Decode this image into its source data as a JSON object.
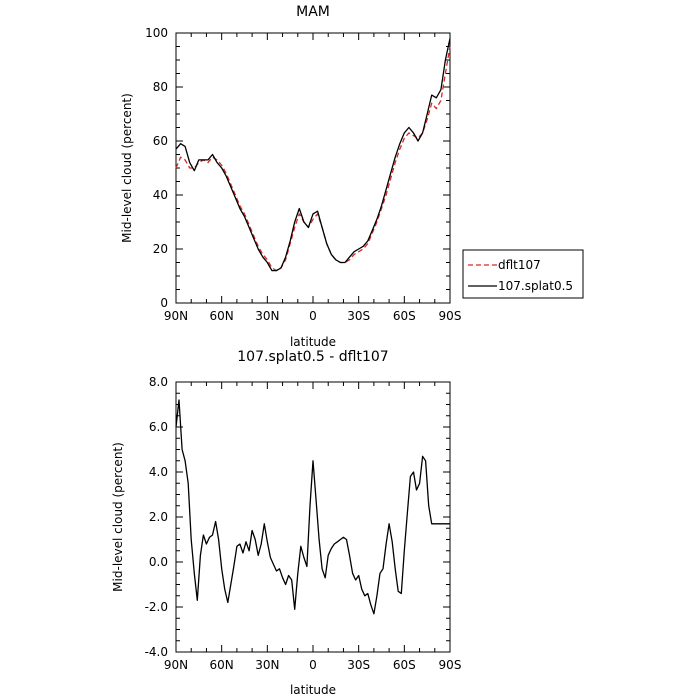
{
  "chart_data": [
    {
      "type": "line",
      "title": "MAM",
      "xlabel": "latitude",
      "ylabel": "Mid-level cloud (percent)",
      "xlim": [
        90,
        -90
      ],
      "ylim": [
        0,
        100
      ],
      "x_ticks": [
        90,
        60,
        30,
        0,
        -30,
        -60,
        -90
      ],
      "x_tick_labels": [
        "90N",
        "60N",
        "30N",
        "0",
        "30S",
        "60S",
        "90S"
      ],
      "y_ticks": [
        0,
        20,
        40,
        60,
        80,
        100
      ],
      "y_tick_labels": [
        "0",
        "20",
        "40",
        "60",
        "80",
        "100"
      ],
      "legend_position": "right",
      "series": [
        {
          "name": "dflt107",
          "color": "#d62728",
          "style": "dashed",
          "x": [
            90,
            87,
            84,
            81,
            78,
            75,
            72,
            69,
            66,
            63,
            60,
            57,
            54,
            51,
            48,
            45,
            42,
            39,
            36,
            33,
            30,
            27,
            24,
            21,
            18,
            15,
            12,
            9,
            6,
            3,
            0,
            -3,
            -6,
            -9,
            -12,
            -15,
            -18,
            -21,
            -24,
            -27,
            -30,
            -33,
            -36,
            -39,
            -42,
            -45,
            -48,
            -51,
            -54,
            -57,
            -60,
            -63,
            -66,
            -69,
            -72,
            -75,
            -78,
            -81,
            -84,
            -87,
            -90
          ],
          "y": [
            50,
            54,
            53,
            50,
            50,
            52,
            53,
            52,
            54,
            53,
            51,
            48,
            44,
            40,
            36,
            33,
            29,
            25,
            21,
            18,
            16,
            13,
            12,
            13,
            16,
            22,
            28,
            33,
            30,
            28,
            31,
            33,
            28,
            22,
            18,
            16,
            15,
            15,
            16,
            18,
            19,
            20,
            22,
            26,
            30,
            35,
            40,
            46,
            52,
            57,
            61,
            63,
            62,
            61,
            63,
            68,
            74,
            72,
            75,
            85,
            95
          ]
        },
        {
          "name": "107.splat0.5",
          "color": "#000000",
          "style": "solid",
          "x": [
            90,
            87,
            84,
            81,
            78,
            75,
            72,
            69,
            66,
            63,
            60,
            57,
            54,
            51,
            48,
            45,
            42,
            39,
            36,
            33,
            30,
            27,
            24,
            21,
            18,
            15,
            12,
            9,
            6,
            3,
            0,
            -3,
            -6,
            -9,
            -12,
            -15,
            -18,
            -21,
            -24,
            -27,
            -30,
            -33,
            -36,
            -39,
            -42,
            -45,
            -48,
            -51,
            -54,
            -57,
            -60,
            -63,
            -66,
            -69,
            -72,
            -75,
            -78,
            -81,
            -84,
            -87,
            -90
          ],
          "y": [
            57,
            59,
            58,
            52,
            49,
            53,
            53,
            53,
            55,
            52,
            50,
            47,
            43,
            39,
            35,
            32,
            28,
            24,
            20,
            17,
            15,
            12,
            12,
            13,
            17,
            23,
            30,
            35,
            30,
            28,
            33,
            34,
            28,
            22,
            18,
            16,
            15,
            15,
            17,
            19,
            20,
            21,
            23,
            27,
            31,
            36,
            42,
            48,
            54,
            59,
            63,
            65,
            63,
            60,
            63,
            70,
            77,
            76,
            79,
            90,
            98
          ]
        }
      ]
    },
    {
      "type": "line",
      "title": "107.splat0.5 - dflt107",
      "xlabel": "latitude",
      "ylabel": "Mid-level cloud (percent)",
      "xlim": [
        90,
        -90
      ],
      "ylim": [
        -4.0,
        8.0
      ],
      "x_ticks": [
        90,
        60,
        30,
        0,
        -30,
        -60,
        -90
      ],
      "x_tick_labels": [
        "90N",
        "60N",
        "30N",
        "0",
        "30S",
        "60S",
        "90S"
      ],
      "y_ticks": [
        -4.0,
        -2.0,
        0.0,
        2.0,
        4.0,
        6.0,
        8.0
      ],
      "y_tick_labels": [
        "-4.0",
        "-2.0",
        "0.0",
        "2.0",
        "4.0",
        "6.0",
        "8.0"
      ],
      "series": [
        {
          "color": "#000000",
          "style": "solid",
          "x": [
            90,
            88,
            86,
            84,
            82,
            80,
            78,
            76,
            74,
            72,
            70,
            68,
            66,
            64,
            62,
            60,
            58,
            56,
            54,
            52,
            50,
            48,
            46,
            44,
            42,
            40,
            38,
            36,
            34,
            32,
            30,
            28,
            26,
            24,
            22,
            20,
            18,
            16,
            14,
            12,
            10,
            8,
            6,
            4,
            2,
            0,
            -2,
            -4,
            -6,
            -8,
            -10,
            -12,
            -14,
            -16,
            -18,
            -20,
            -22,
            -24,
            -26,
            -28,
            -30,
            -32,
            -34,
            -36,
            -38,
            -40,
            -42,
            -44,
            -46,
            -48,
            -50,
            -52,
            -54,
            -56,
            -58,
            -60,
            -62,
            -64,
            -66,
            -68,
            -70,
            -72,
            -74,
            -76,
            -78,
            -80,
            -82,
            -84,
            -86,
            -88,
            -90
          ],
          "y": [
            6.0,
            7.2,
            5.0,
            4.5,
            3.5,
            1.0,
            -0.5,
            -1.7,
            0.3,
            1.2,
            0.8,
            1.1,
            1.2,
            1.8,
            1.0,
            -0.3,
            -1.2,
            -1.8,
            -1.0,
            -0.2,
            0.7,
            0.8,
            0.4,
            0.9,
            0.5,
            1.4,
            1.0,
            0.3,
            0.8,
            1.7,
            0.9,
            0.2,
            -0.1,
            -0.4,
            -0.3,
            -0.7,
            -1.0,
            -0.6,
            -0.8,
            -2.1,
            -0.5,
            0.7,
            0.2,
            -0.2,
            2.5,
            4.5,
            2.8,
            1.0,
            -0.3,
            -0.7,
            0.3,
            0.6,
            0.8,
            0.9,
            1.0,
            1.1,
            1.0,
            0.3,
            -0.5,
            -0.8,
            -0.6,
            -1.2,
            -1.5,
            -1.4,
            -1.9,
            -2.3,
            -1.5,
            -0.5,
            -0.3,
            0.8,
            1.7,
            0.9,
            -0.3,
            -1.3,
            -1.4,
            0.5,
            2.2,
            3.8,
            4.0,
            3.2,
            3.5,
            4.7,
            4.5,
            2.5,
            1.7,
            1.7,
            1.7,
            1.7,
            1.7,
            1.7,
            1.7
          ]
        }
      ]
    }
  ]
}
